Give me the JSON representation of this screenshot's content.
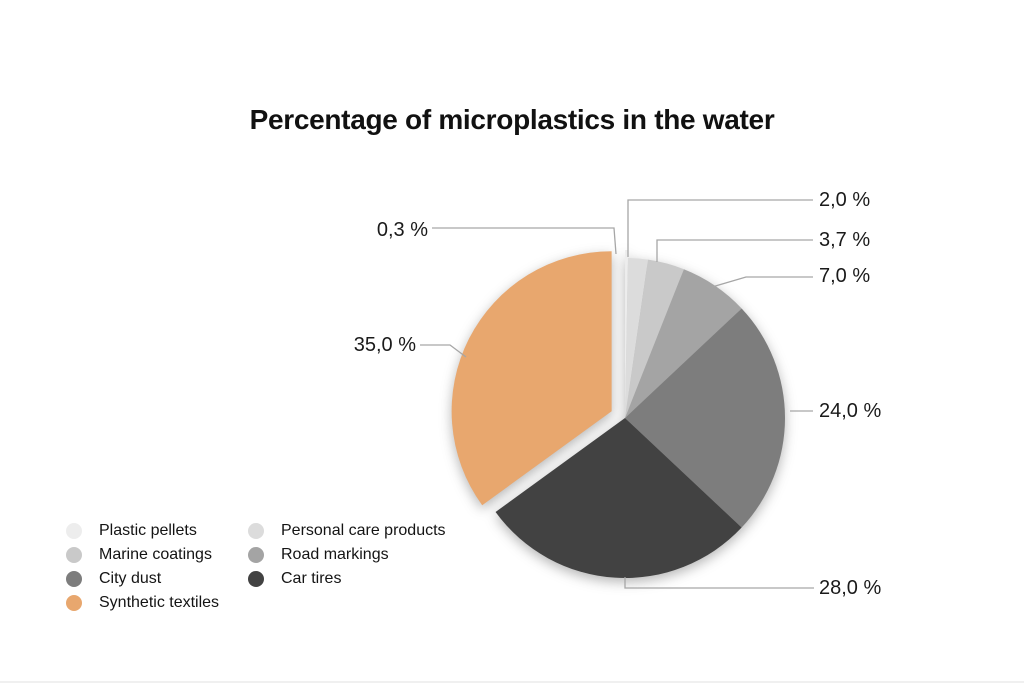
{
  "chart_data": {
    "type": "pie",
    "title": "Percentage of microplastics in the water",
    "unit": "%",
    "decimal_separator": ",",
    "start_angle_deg": 0,
    "direction": "clockwise",
    "legend": {
      "position": "bottom-left",
      "columns": 2
    },
    "slices": [
      {
        "label": "Plastic pellets",
        "value": 0.3,
        "pct_label": "0,3 %",
        "color": "#ededed",
        "explode": 8
      },
      {
        "label": "Personal care products",
        "value": 2.0,
        "pct_label": "2,0 %",
        "color": "#dcdcdc",
        "explode": 0
      },
      {
        "label": "Marine coatings",
        "value": 3.7,
        "pct_label": "3,7 %",
        "color": "#c9c9c9",
        "explode": 0
      },
      {
        "label": "Road markings",
        "value": 7.0,
        "pct_label": "7,0 %",
        "color": "#a4a4a4",
        "explode": 0
      },
      {
        "label": "City dust",
        "value": 24.0,
        "pct_label": "24,0 %",
        "color": "#7d7d7d",
        "explode": 0
      },
      {
        "label": "Car tires",
        "value": 28.0,
        "pct_label": "28,0 %",
        "color": "#424242",
        "explode": 0
      },
      {
        "label": "Synthetic textiles",
        "value": 35.0,
        "pct_label": "35,0 %",
        "color": "#e8a76e",
        "explode": 15
      }
    ]
  },
  "colors": {
    "background": "#ffffff",
    "leader_line": "#a6a6a6",
    "text": "#1a1a1a",
    "title_text": "#111111"
  }
}
